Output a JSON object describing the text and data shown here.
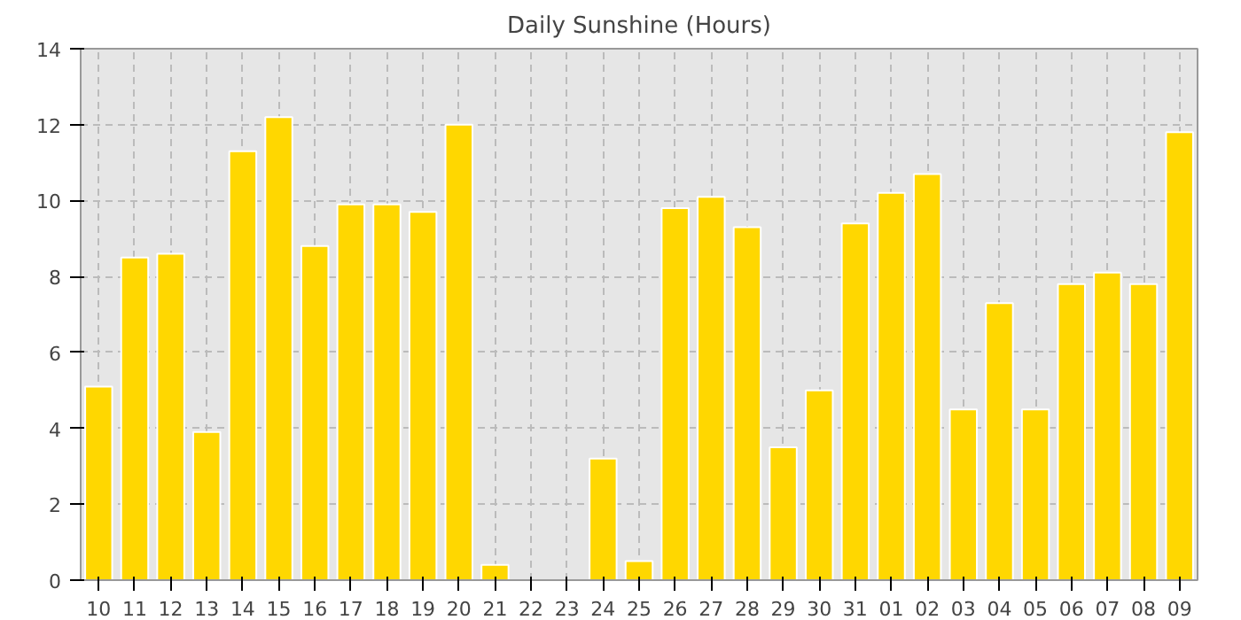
{
  "chart_data": {
    "type": "bar",
    "title": "Daily Sunshine (Hours)",
    "categories": [
      "10",
      "11",
      "12",
      "13",
      "14",
      "15",
      "16",
      "17",
      "18",
      "19",
      "20",
      "21",
      "22",
      "23",
      "24",
      "25",
      "26",
      "27",
      "28",
      "29",
      "30",
      "31",
      "01",
      "02",
      "03",
      "04",
      "05",
      "06",
      "07",
      "08",
      "09"
    ],
    "values": [
      5.1,
      8.5,
      8.6,
      3.9,
      11.3,
      12.2,
      8.8,
      9.9,
      9.9,
      9.7,
      12.0,
      0.4,
      0,
      0,
      3.2,
      0.5,
      9.8,
      10.1,
      9.3,
      3.5,
      5.0,
      9.4,
      10.2,
      10.7,
      4.5,
      7.3,
      4.5,
      7.8,
      8.1,
      7.8,
      11.8
    ],
    "color": "#ffd700",
    "ylim": [
      0,
      14
    ],
    "yticks": [
      0,
      2,
      4,
      6,
      8,
      10,
      12,
      14
    ],
    "grid": true
  }
}
